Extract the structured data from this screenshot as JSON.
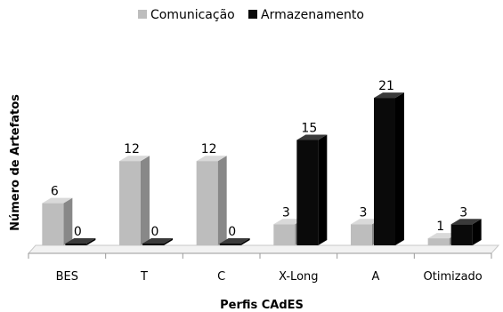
{
  "chart_data": {
    "type": "bar",
    "title": "",
    "xlabel": "Perfis CAdES",
    "ylabel": "Número de Artefatos",
    "categories": [
      "BES",
      "T",
      "C",
      "X-Long",
      "A",
      "Otimizado"
    ],
    "series": [
      {
        "name": "Comunicação",
        "values": [
          6,
          12,
          12,
          3,
          3,
          1
        ],
        "color": "#bdbdbd"
      },
      {
        "name": "Armazenamento",
        "values": [
          0,
          0,
          0,
          15,
          21,
          3
        ],
        "color": "#0a0a0a"
      }
    ],
    "ylim": [
      0,
      21
    ],
    "grid": false,
    "legend_position": "top",
    "style": "3d-bars"
  }
}
